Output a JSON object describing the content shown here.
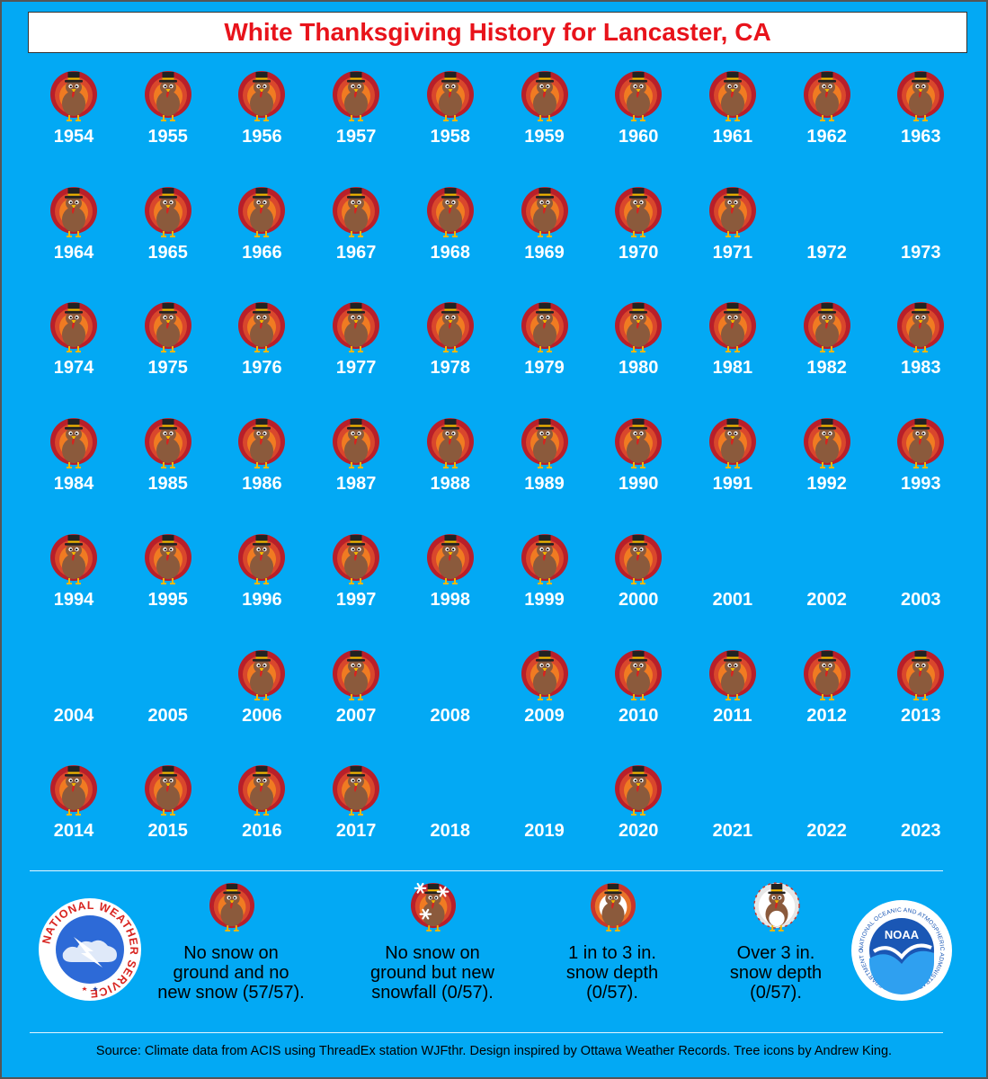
{
  "title": "White Thanksgiving History for Lancaster, CA",
  "years": [
    {
      "year": "1954",
      "category": "no-snow"
    },
    {
      "year": "1955",
      "category": "no-snow"
    },
    {
      "year": "1956",
      "category": "no-snow"
    },
    {
      "year": "1957",
      "category": "no-snow"
    },
    {
      "year": "1958",
      "category": "no-snow"
    },
    {
      "year": "1959",
      "category": "no-snow"
    },
    {
      "year": "1960",
      "category": "no-snow"
    },
    {
      "year": "1961",
      "category": "no-snow"
    },
    {
      "year": "1962",
      "category": "no-snow"
    },
    {
      "year": "1963",
      "category": "no-snow"
    },
    {
      "year": "1964",
      "category": "no-snow"
    },
    {
      "year": "1965",
      "category": "no-snow"
    },
    {
      "year": "1966",
      "category": "no-snow"
    },
    {
      "year": "1967",
      "category": "no-snow"
    },
    {
      "year": "1968",
      "category": "no-snow"
    },
    {
      "year": "1969",
      "category": "no-snow"
    },
    {
      "year": "1970",
      "category": "no-snow"
    },
    {
      "year": "1971",
      "category": "no-snow"
    },
    {
      "year": "1972",
      "category": "missing"
    },
    {
      "year": "1973",
      "category": "missing"
    },
    {
      "year": "1974",
      "category": "no-snow"
    },
    {
      "year": "1975",
      "category": "no-snow"
    },
    {
      "year": "1976",
      "category": "no-snow"
    },
    {
      "year": "1977",
      "category": "no-snow"
    },
    {
      "year": "1978",
      "category": "no-snow"
    },
    {
      "year": "1979",
      "category": "no-snow"
    },
    {
      "year": "1980",
      "category": "no-snow"
    },
    {
      "year": "1981",
      "category": "no-snow"
    },
    {
      "year": "1982",
      "category": "no-snow"
    },
    {
      "year": "1983",
      "category": "no-snow"
    },
    {
      "year": "1984",
      "category": "no-snow"
    },
    {
      "year": "1985",
      "category": "no-snow"
    },
    {
      "year": "1986",
      "category": "no-snow"
    },
    {
      "year": "1987",
      "category": "no-snow"
    },
    {
      "year": "1988",
      "category": "no-snow"
    },
    {
      "year": "1989",
      "category": "no-snow"
    },
    {
      "year": "1990",
      "category": "no-snow"
    },
    {
      "year": "1991",
      "category": "no-snow"
    },
    {
      "year": "1992",
      "category": "no-snow"
    },
    {
      "year": "1993",
      "category": "no-snow"
    },
    {
      "year": "1994",
      "category": "no-snow"
    },
    {
      "year": "1995",
      "category": "no-snow"
    },
    {
      "year": "1996",
      "category": "no-snow"
    },
    {
      "year": "1997",
      "category": "no-snow"
    },
    {
      "year": "1998",
      "category": "no-snow"
    },
    {
      "year": "1999",
      "category": "no-snow"
    },
    {
      "year": "2000",
      "category": "no-snow"
    },
    {
      "year": "2001",
      "category": "missing"
    },
    {
      "year": "2002",
      "category": "missing"
    },
    {
      "year": "2003",
      "category": "missing"
    },
    {
      "year": "2004",
      "category": "missing"
    },
    {
      "year": "2005",
      "category": "missing"
    },
    {
      "year": "2006",
      "category": "no-snow"
    },
    {
      "year": "2007",
      "category": "no-snow"
    },
    {
      "year": "2008",
      "category": "missing"
    },
    {
      "year": "2009",
      "category": "no-snow"
    },
    {
      "year": "2010",
      "category": "no-snow"
    },
    {
      "year": "2011",
      "category": "no-snow"
    },
    {
      "year": "2012",
      "category": "no-snow"
    },
    {
      "year": "2013",
      "category": "no-snow"
    },
    {
      "year": "2014",
      "category": "no-snow"
    },
    {
      "year": "2015",
      "category": "no-snow"
    },
    {
      "year": "2016",
      "category": "no-snow"
    },
    {
      "year": "2017",
      "category": "no-snow"
    },
    {
      "year": "2018",
      "category": "missing"
    },
    {
      "year": "2019",
      "category": "missing"
    },
    {
      "year": "2020",
      "category": "no-snow"
    },
    {
      "year": "2021",
      "category": "missing"
    },
    {
      "year": "2022",
      "category": "missing"
    },
    {
      "year": "2023",
      "category": "missing"
    }
  ],
  "legend": [
    {
      "icon": "turkey-icon",
      "text": "No snow on\nground and no\nnew snow (57/57)."
    },
    {
      "icon": "turkey-snowfall-icon",
      "text": "No snow on\nground but new\nsnowfall (0/57)."
    },
    {
      "icon": "turkey-light-snow-icon",
      "text": "1 in to 3 in.\nsnow depth\n(0/57)."
    },
    {
      "icon": "turkey-deep-snow-icon",
      "text": "Over 3 in.\nsnow depth\n(0/57)."
    }
  ],
  "logos": {
    "nws": {
      "text": "NATIONAL WEATHER SERVICE"
    },
    "noaa": {
      "text": "NOAA",
      "ring_text": "NATIONAL OCEANIC AND ATMOSPHERIC ADMINISTRATION · U.S. DEPARTMENT OF COMMERCE"
    }
  },
  "source": "Source: Climate data from ACIS using ThreadEx station WJFthr. Design inspired by Ottawa Weather Records. Tree icons by Andrew King.",
  "colors": {
    "background": "#03a9f4",
    "title": "#e8131b"
  }
}
